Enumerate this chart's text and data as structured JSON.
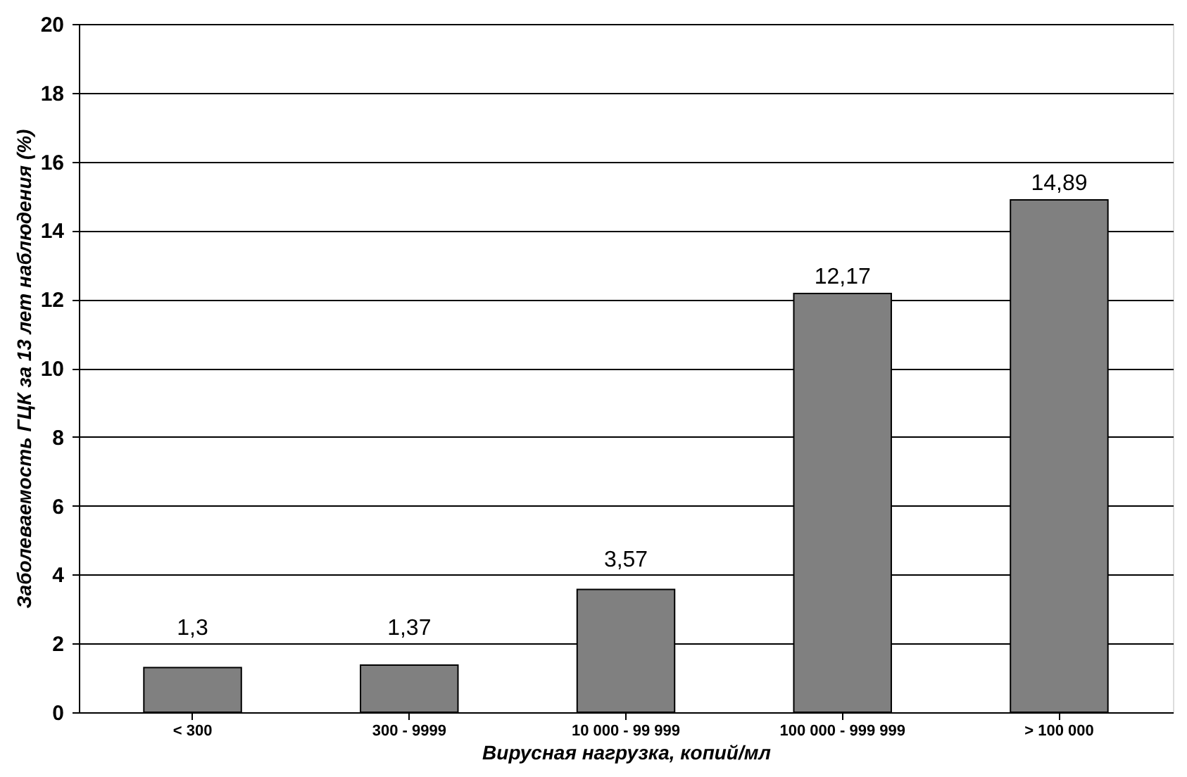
{
  "chart_data": {
    "type": "bar",
    "xlabel": "Вирусная нагрузка, копий/мл",
    "ylabel": "Заболеваемость ГЦК за 13 лет наблюдения (%)",
    "categories": [
      "< 300",
      "300 - 9999",
      "10 000 - 99 999",
      "100 000 - 999 999",
      "> 100 000"
    ],
    "values": [
      1.3,
      1.37,
      3.57,
      12.17,
      14.89
    ],
    "value_labels": [
      "1,3",
      "1,37",
      "3,57",
      "12,17",
      "14,89"
    ],
    "color": "#808080",
    "ylim": [
      0,
      20
    ],
    "yticks": [
      0,
      2,
      4,
      6,
      8,
      10,
      12,
      14,
      16,
      18,
      20
    ],
    "grid": "y"
  }
}
